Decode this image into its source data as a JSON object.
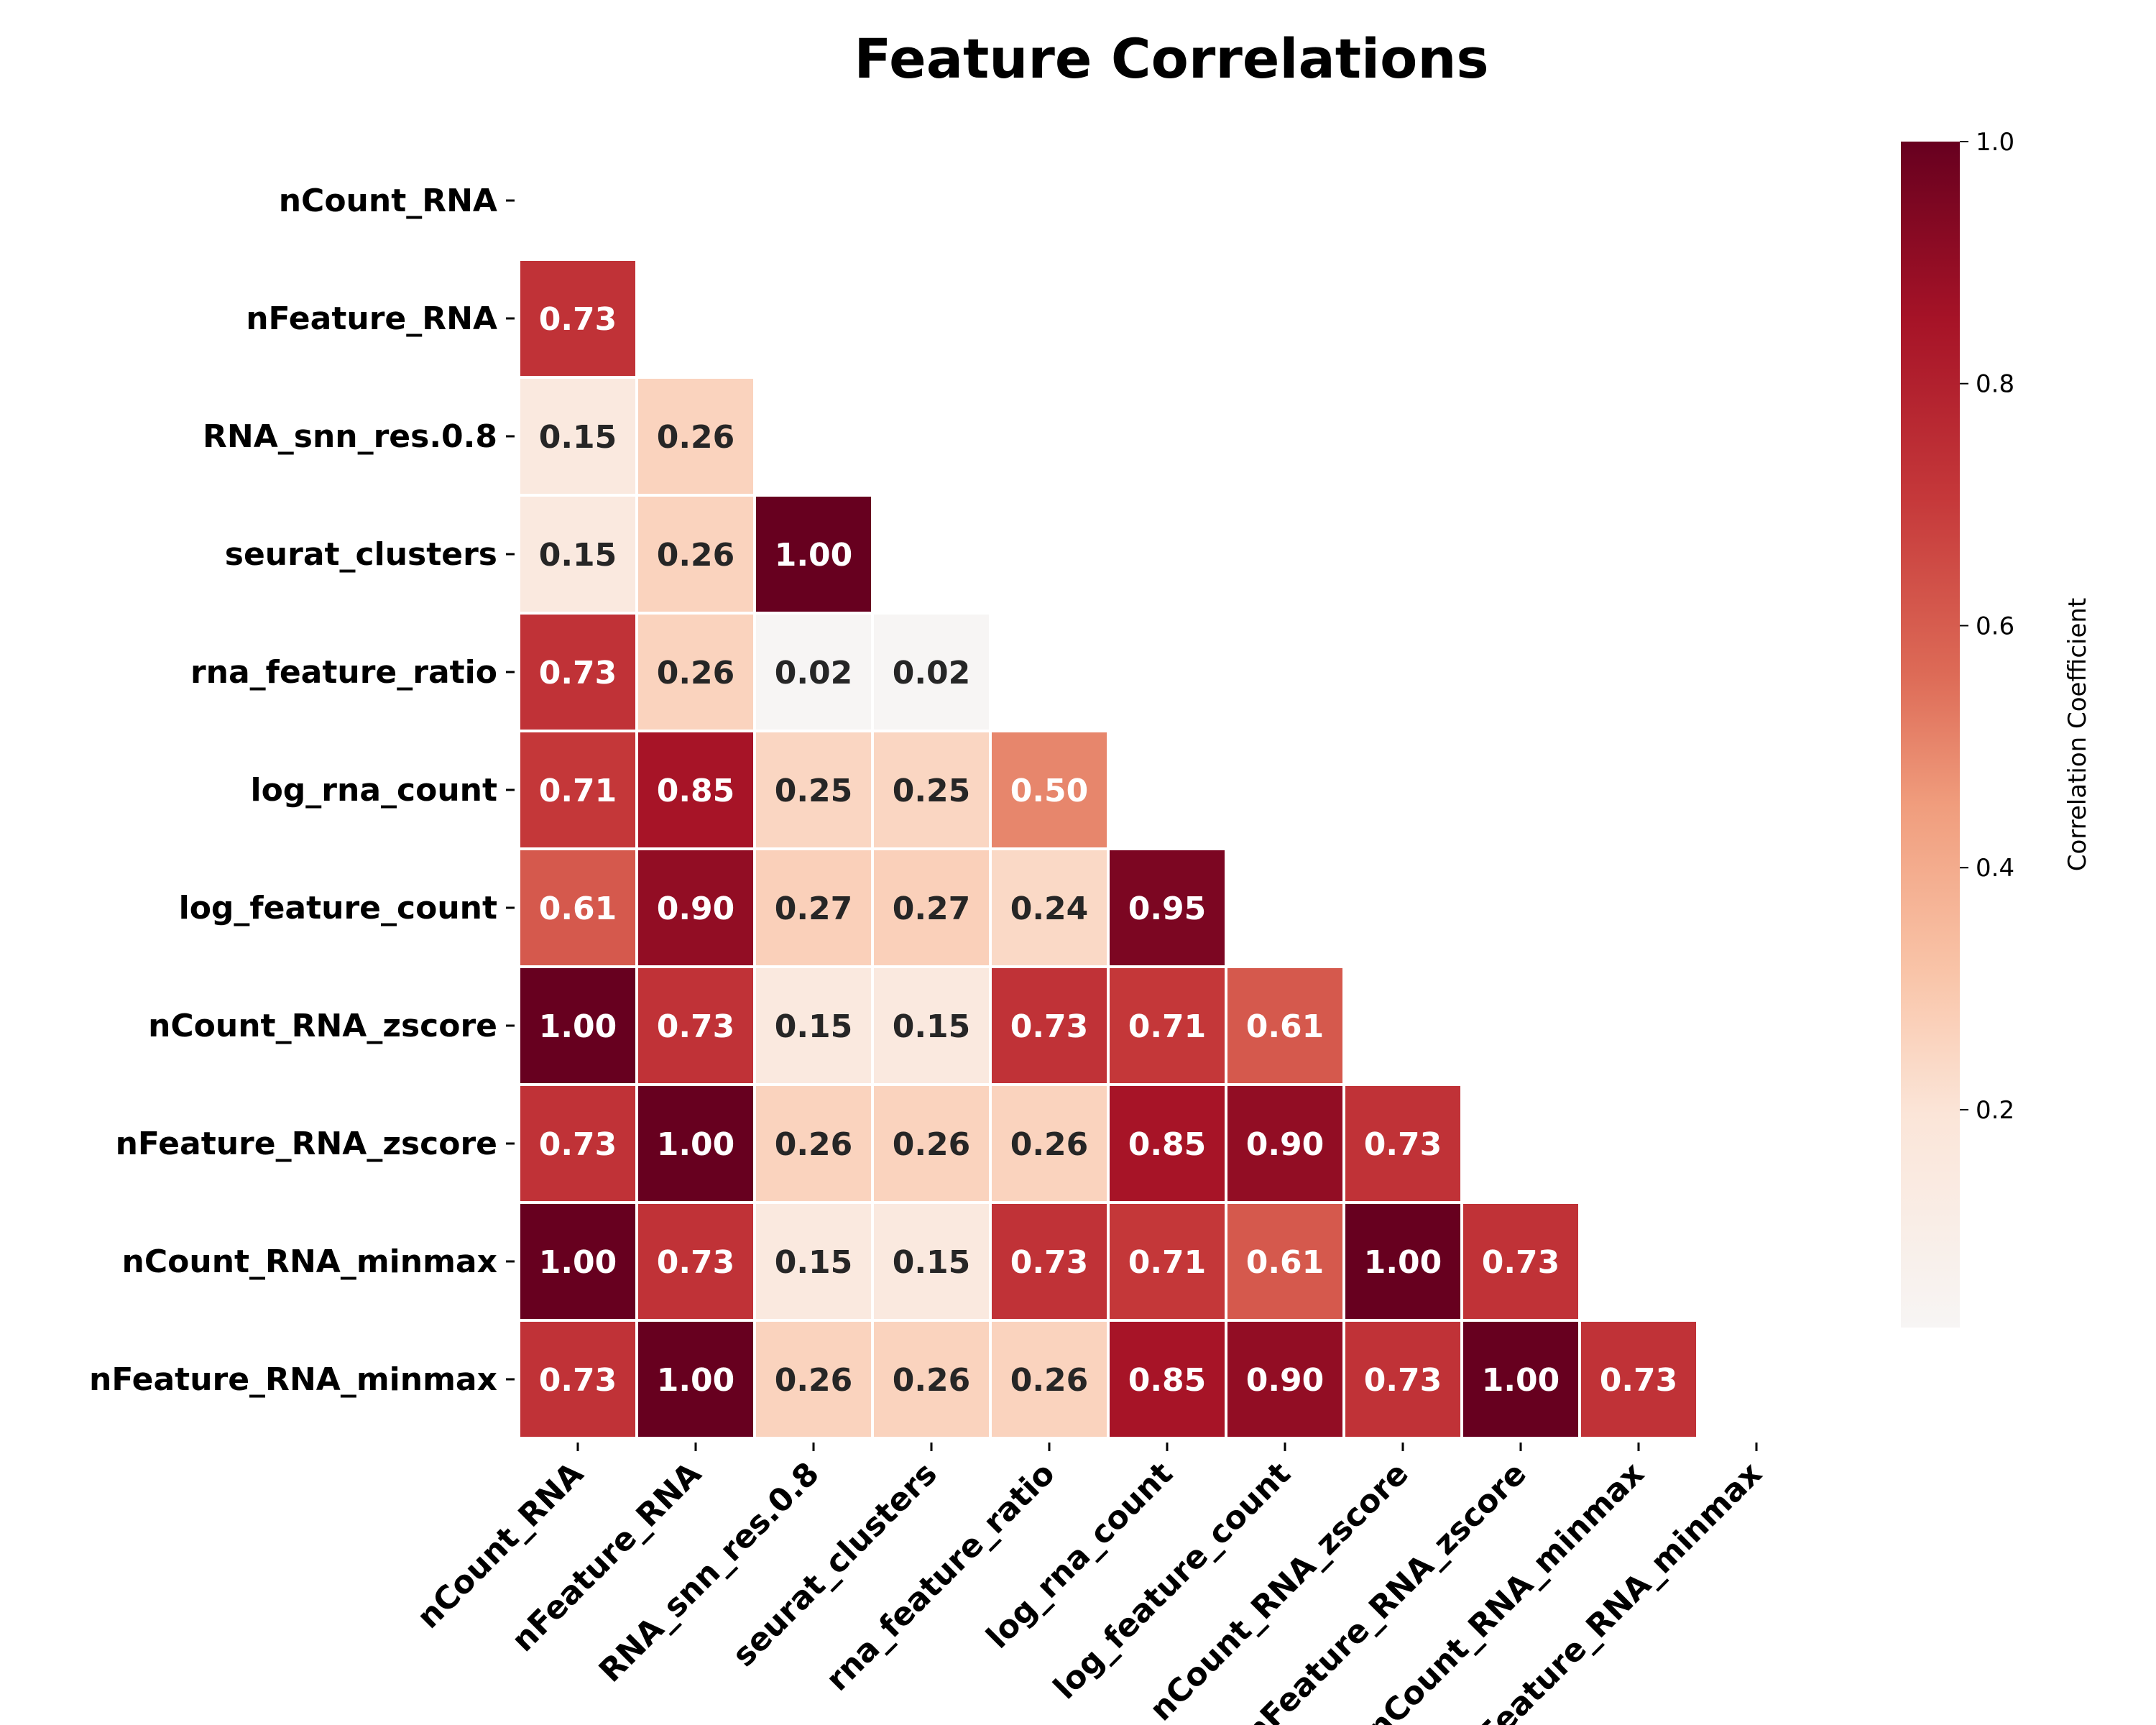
{
  "chart_data": {
    "type": "heatmap",
    "title": "Feature Correlations",
    "rows": [
      "nCount_RNA",
      "nFeature_RNA",
      "RNA_snn_res.0.8",
      "seurat_clusters",
      "rna_feature_ratio",
      "log_rna_count",
      "log_feature_count",
      "nCount_RNA_zscore",
      "nFeature_RNA_zscore",
      "nCount_RNA_minmax",
      "nFeature_RNA_minmax"
    ],
    "columns": [
      "nCount_RNA",
      "nFeature_RNA",
      "RNA_snn_res.0.8",
      "seurat_clusters",
      "rna_feature_ratio",
      "log_rna_count",
      "log_feature_count",
      "nCount_RNA_zscore",
      "nFeature_RNA_zscore",
      "nCount_RNA_minmax",
      "nFeature_RNA_minmax"
    ],
    "mask": "upper-triangle-including-diagonal",
    "values": [
      [],
      [
        0.73
      ],
      [
        0.15,
        0.26
      ],
      [
        0.15,
        0.26,
        1.0
      ],
      [
        0.73,
        0.26,
        0.02,
        0.02
      ],
      [
        0.71,
        0.85,
        0.25,
        0.25,
        0.5
      ],
      [
        0.61,
        0.9,
        0.27,
        0.27,
        0.24,
        0.95
      ],
      [
        1.0,
        0.73,
        0.15,
        0.15,
        0.73,
        0.71,
        0.61
      ],
      [
        0.73,
        1.0,
        0.26,
        0.26,
        0.26,
        0.85,
        0.9,
        0.73
      ],
      [
        1.0,
        0.73,
        0.15,
        0.15,
        0.73,
        0.71,
        0.61,
        1.0,
        0.73
      ],
      [
        0.73,
        1.0,
        0.26,
        0.26,
        0.26,
        0.85,
        0.9,
        0.73,
        1.0,
        0.73
      ]
    ],
    "value_labels": [
      [],
      [
        "0.73"
      ],
      [
        "0.15",
        "0.26"
      ],
      [
        "0.15",
        "0.26",
        "1.00"
      ],
      [
        "0.73",
        "0.26",
        "0.02",
        "0.02"
      ],
      [
        "0.71",
        "0.85",
        "0.25",
        "0.25",
        "0.50"
      ],
      [
        "0.61",
        "0.90",
        "0.27",
        "0.27",
        "0.24",
        "0.95"
      ],
      [
        "1.00",
        "0.73",
        "0.15",
        "0.15",
        "0.73",
        "0.71",
        "0.61"
      ],
      [
        "0.73",
        "1.00",
        "0.26",
        "0.26",
        "0.26",
        "0.85",
        "0.90",
        "0.73"
      ],
      [
        "1.00",
        "0.73",
        "0.15",
        "0.15",
        "0.73",
        "0.71",
        "0.61",
        "1.00",
        "0.73"
      ],
      [
        "0.73",
        "1.00",
        "0.26",
        "0.26",
        "0.26",
        "0.85",
        "0.90",
        "0.73",
        "1.00",
        "0.73"
      ]
    ],
    "colorbar": {
      "label": "Correlation Coefficient",
      "range": [
        0.02,
        1.0
      ],
      "ticks": [
        0.2,
        0.4,
        0.6,
        0.8,
        1.0
      ],
      "tick_labels": [
        "0.2",
        "0.4",
        "0.6",
        "0.8",
        "1.0"
      ],
      "placement": "right"
    },
    "colormap": "RdBu_r (white to dark red)",
    "grid": false
  }
}
